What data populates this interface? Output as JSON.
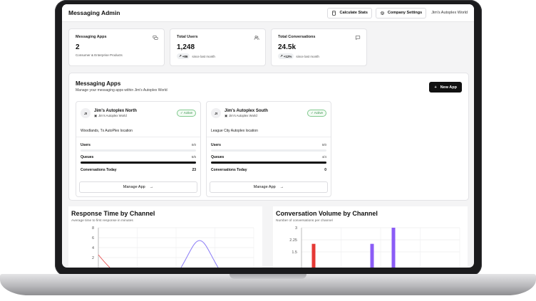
{
  "header": {
    "title": "Messaging Admin",
    "calc_label": "Calculate Stats",
    "settings_label": "Company Settings",
    "tenant": "Jim's Autoplex World"
  },
  "stats": [
    {
      "label": "Messaging Apps",
      "value": "2",
      "sub": "Consumer & Enterprise Products",
      "icon": "messages-icon"
    },
    {
      "label": "Total Users",
      "value": "1,248",
      "delta": "+86",
      "sub": "since last month",
      "icon": "users-icon"
    },
    {
      "label": "Total Conversations",
      "value": "24.5k",
      "delta": "+12%",
      "sub": "since last month",
      "icon": "chat-icon"
    }
  ],
  "apps_panel": {
    "title": "Messaging Apps",
    "subtitle": "Manage your messaging apps within Jim's Autoplex World",
    "new_button": "New App",
    "cards": [
      {
        "initials": "JI",
        "name": "Jim's Autoplex North",
        "handle": "Jim's Autoplex World",
        "status": "Active",
        "location": "Woodlands, Tx AutoPlex location",
        "users_label": "Users",
        "users_value": "0/0",
        "users_fill": 0,
        "queues_label": "Queues",
        "queues_value": "5/5",
        "queues_fill": 1,
        "today_label": "Conversations Today",
        "today_value": "23",
        "manage_label": "Manage App"
      },
      {
        "initials": "JI",
        "name": "Jim's Autoplex South",
        "handle": "Jim's Autoplex World",
        "status": "Active",
        "location": "League City Autoplex location",
        "users_label": "Users",
        "users_value": "0/0",
        "users_fill": 0,
        "queues_label": "Queues",
        "queues_value": "4/4",
        "queues_fill": 1,
        "today_label": "Conversations Today",
        "today_value": "0",
        "manage_label": "Manage App"
      }
    ]
  },
  "chart_data": [
    {
      "type": "line",
      "title": "Response Time by Channel",
      "subtitle": "Average time to first response in minutes",
      "yticks": [
        "8",
        "6",
        "4",
        "2"
      ],
      "ylim": [
        1.5,
        8
      ],
      "series_colors": [
        "#e85a5a",
        "#8b7cf6"
      ]
    },
    {
      "type": "bar",
      "title": "Conversation Volume by Channel",
      "subtitle": "Number of conversations per channel",
      "yticks": [
        "3",
        "2.25",
        "1.5"
      ],
      "ylim": [
        1,
        3
      ],
      "values": [
        2,
        2,
        3
      ],
      "colors": [
        "#e53935",
        "#8b5cf6",
        "#8b5cf6"
      ]
    }
  ]
}
